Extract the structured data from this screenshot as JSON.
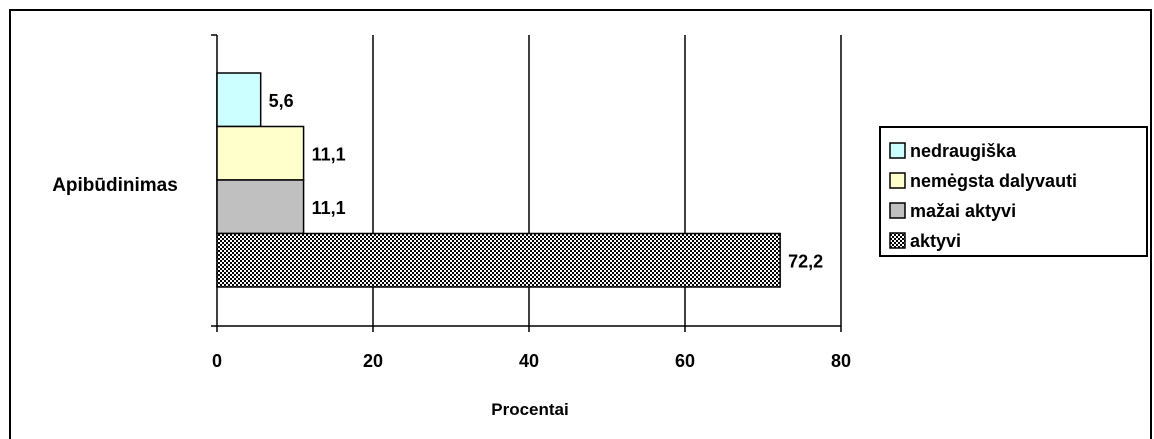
{
  "chart_data": {
    "type": "bar",
    "orientation": "horizontal",
    "stacking": "grouped",
    "category_label": "Apibūdinimas",
    "xlabel": "Procentai",
    "xlim": [
      0,
      80
    ],
    "xticks": [
      "0",
      "20",
      "40",
      "60",
      "80"
    ],
    "xtick_values": [
      0,
      20,
      40,
      60,
      80
    ],
    "grid": "vertical major gridlines",
    "legend_position": "right",
    "series": [
      {
        "name": "nedraugiška",
        "value": 5.6,
        "label": "5,6",
        "color": "#ccffff",
        "pattern": "solid"
      },
      {
        "name": "nemėgsta dalyvauti",
        "value": 11.1,
        "label": "11,1",
        "color": "#ffffcc",
        "pattern": "solid"
      },
      {
        "name": "mažai aktyvi",
        "value": 11.1,
        "label": "11,1",
        "color": "#c0c0c0",
        "pattern": "solid"
      },
      {
        "name": "aktyvi",
        "value": 72.2,
        "label": "72,2",
        "color": "#000000",
        "pattern": "checkered"
      }
    ]
  }
}
